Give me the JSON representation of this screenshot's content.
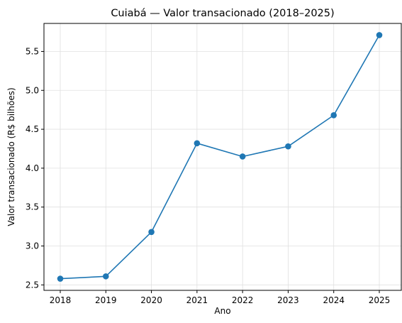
{
  "chart_data": {
    "type": "line",
    "title": "Cuiabá — Valor transacionado (2018–2025)",
    "xlabel": "Ano",
    "ylabel": "Valor transacionado (R$ bilhões)",
    "x": [
      "2018",
      "2019",
      "2020",
      "2021",
      "2022",
      "2023",
      "2024",
      "2025"
    ],
    "series": [
      {
        "values": [
          2.58,
          2.61,
          3.18,
          4.32,
          4.15,
          4.28,
          4.68,
          5.71
        ]
      }
    ],
    "yticks": [
      "2.5",
      "3.0",
      "3.5",
      "4.0",
      "4.5",
      "5.0",
      "5.5"
    ],
    "ylim": [
      2.43,
      5.86
    ],
    "grid": true,
    "markers": true,
    "line_color": "#1f77b4",
    "grid_color": "#e0e0e0"
  }
}
